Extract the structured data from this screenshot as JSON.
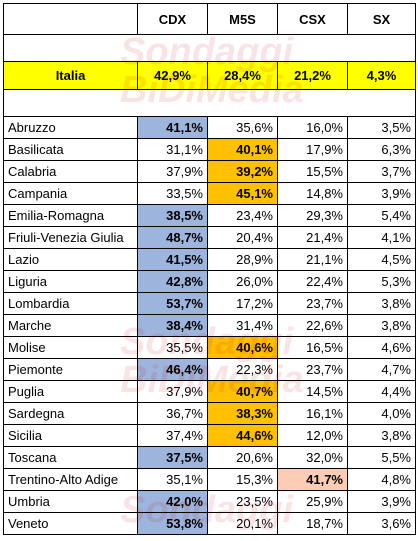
{
  "columns": [
    "",
    "CDX",
    "M5S",
    "CSX",
    "SX"
  ],
  "national": {
    "name": "Italia",
    "values": [
      "42,9%",
      "28,4%",
      "21,2%",
      "4,3%"
    ]
  },
  "watermark": {
    "line1": "Sondaggi",
    "line2": "BiDiMedia"
  },
  "rows": [
    {
      "name": "Abruzzo",
      "values": [
        "41,1%",
        "35,6%",
        "16,0%",
        "3,5%"
      ],
      "winner": 0
    },
    {
      "name": "Basilicata",
      "values": [
        "31,1%",
        "40,1%",
        "17,9%",
        "6,3%"
      ],
      "winner": 1
    },
    {
      "name": "Calabria",
      "values": [
        "37,9%",
        "39,2%",
        "15,5%",
        "3,7%"
      ],
      "winner": 1
    },
    {
      "name": "Campania",
      "values": [
        "33,5%",
        "45,1%",
        "14,8%",
        "3,9%"
      ],
      "winner": 1
    },
    {
      "name": "Emilia-Romagna",
      "values": [
        "38,5%",
        "23,4%",
        "29,3%",
        "5,4%"
      ],
      "winner": 0
    },
    {
      "name": "Friuli-Venezia Giulia",
      "values": [
        "48,7%",
        "20,4%",
        "21,4%",
        "4,1%"
      ],
      "winner": 0
    },
    {
      "name": "Lazio",
      "values": [
        "41,5%",
        "28,9%",
        "21,1%",
        "4,5%"
      ],
      "winner": 0
    },
    {
      "name": "Liguria",
      "values": [
        "42,8%",
        "26,0%",
        "22,4%",
        "5,3%"
      ],
      "winner": 0
    },
    {
      "name": "Lombardia",
      "values": [
        "53,7%",
        "17,2%",
        "23,7%",
        "3,8%"
      ],
      "winner": 0
    },
    {
      "name": "Marche",
      "values": [
        "38,4%",
        "31,4%",
        "22,6%",
        "3,8%"
      ],
      "winner": 0
    },
    {
      "name": "Molise",
      "values": [
        "35,5%",
        "40,6%",
        "16,5%",
        "4,6%"
      ],
      "winner": 1
    },
    {
      "name": "Piemonte",
      "values": [
        "46,4%",
        "22,3%",
        "23,7%",
        "4,7%"
      ],
      "winner": 0
    },
    {
      "name": "Puglia",
      "values": [
        "37,9%",
        "40,7%",
        "14,5%",
        "4,4%"
      ],
      "winner": 1
    },
    {
      "name": "Sardegna",
      "values": [
        "36,7%",
        "38,3%",
        "16,1%",
        "4,0%"
      ],
      "winner": 1
    },
    {
      "name": "Sicilia",
      "values": [
        "37,4%",
        "44,6%",
        "12,0%",
        "3,8%"
      ],
      "winner": 1
    },
    {
      "name": "Toscana",
      "values": [
        "37,5%",
        "20,6%",
        "32,0%",
        "5,5%"
      ],
      "winner": 0
    },
    {
      "name": "Trentino-Alto Adige",
      "values": [
        "35,1%",
        "15,3%",
        "41,7%",
        "4,8%"
      ],
      "winner": 2
    },
    {
      "name": "Umbria",
      "values": [
        "42,0%",
        "23,5%",
        "25,9%",
        "3,9%"
      ],
      "winner": 0
    },
    {
      "name": "Veneto",
      "values": [
        "53,8%",
        "20,1%",
        "18,7%",
        "3,6%"
      ],
      "winner": 0
    }
  ],
  "colors": {
    "CDX": "#9db4dc",
    "M5S": "#ffc000",
    "CSX": "#fbcdb4",
    "national_row": "#ffff00"
  },
  "chart_data": {
    "type": "table",
    "columns": [
      "CDX",
      "M5S",
      "CSX",
      "SX"
    ],
    "national": {
      "Italia": [
        42.9,
        28.4,
        21.2,
        4.3
      ]
    },
    "categories": [
      "Abruzzo",
      "Basilicata",
      "Calabria",
      "Campania",
      "Emilia-Romagna",
      "Friuli-Venezia Giulia",
      "Lazio",
      "Liguria",
      "Lombardia",
      "Marche",
      "Molise",
      "Piemonte",
      "Puglia",
      "Sardegna",
      "Sicilia",
      "Toscana",
      "Trentino-Alto Adige",
      "Umbria",
      "Veneto"
    ],
    "series": [
      {
        "name": "CDX",
        "values": [
          41.1,
          31.1,
          37.9,
          33.5,
          38.5,
          48.7,
          41.5,
          42.8,
          53.7,
          38.4,
          35.5,
          46.4,
          37.9,
          36.7,
          37.4,
          37.5,
          35.1,
          42.0,
          53.8
        ]
      },
      {
        "name": "M5S",
        "values": [
          35.6,
          40.1,
          39.2,
          45.1,
          23.4,
          20.4,
          28.9,
          26.0,
          17.2,
          31.4,
          40.6,
          22.3,
          40.7,
          38.3,
          44.6,
          20.6,
          15.3,
          23.5,
          20.1
        ]
      },
      {
        "name": "CSX",
        "values": [
          16.0,
          17.9,
          15.5,
          14.8,
          29.3,
          21.4,
          21.1,
          22.4,
          23.7,
          22.6,
          16.5,
          23.7,
          14.5,
          16.1,
          12.0,
          32.0,
          41.7,
          25.9,
          18.7
        ]
      },
      {
        "name": "SX",
        "values": [
          3.5,
          6.3,
          3.7,
          3.9,
          5.4,
          4.1,
          4.5,
          5.3,
          3.8,
          3.8,
          4.6,
          4.7,
          4.4,
          4.0,
          3.8,
          5.5,
          4.8,
          3.9,
          3.6
        ]
      }
    ]
  }
}
